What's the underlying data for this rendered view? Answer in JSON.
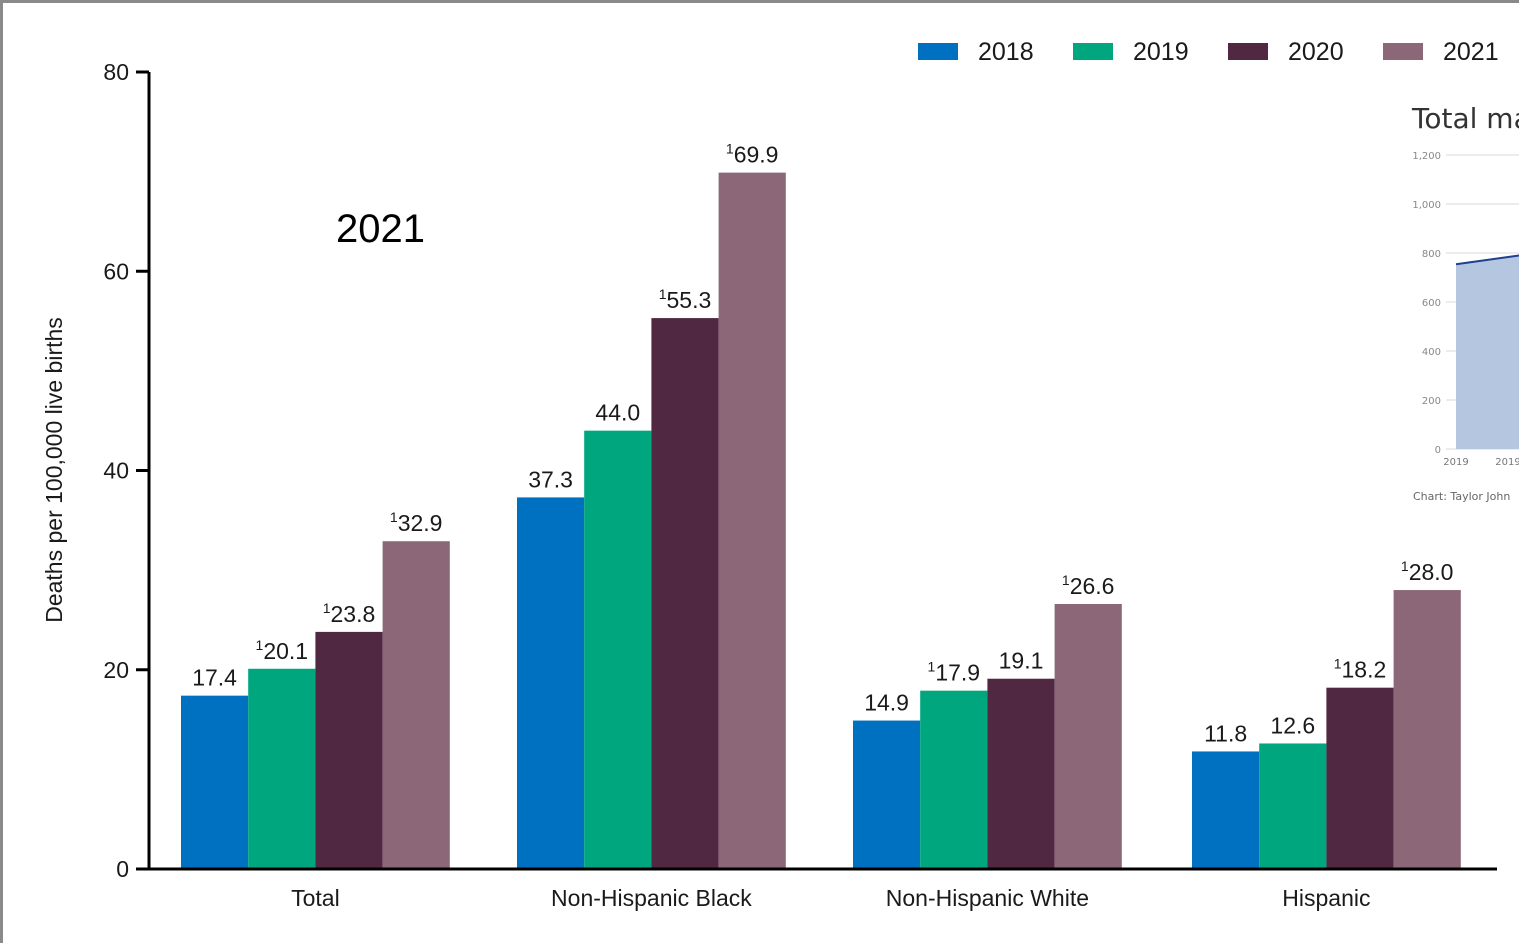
{
  "chart_data": [
    {
      "type": "bar",
      "ylabel": "Deaths per 100,000 live births",
      "ylim": [
        0,
        80
      ],
      "yticks": [
        0,
        20,
        40,
        60,
        80
      ],
      "categories": [
        "Total",
        "Non-Hispanic Black",
        "Non-Hispanic White",
        "Hispanic"
      ],
      "series": [
        {
          "name": "2018",
          "color": "#0070c0",
          "values": [
            17.4,
            37.3,
            14.9,
            11.8
          ],
          "labels": [
            "17.4",
            "37.3",
            "14.9",
            "11.8"
          ],
          "superscripts": [
            "",
            "",
            "",
            ""
          ]
        },
        {
          "name": "2019",
          "color": "#00a67e",
          "values": [
            20.1,
            44.0,
            17.9,
            12.6
          ],
          "labels": [
            "20.1",
            "44.0",
            "17.9",
            "12.6"
          ],
          "superscripts": [
            "1",
            "",
            "1",
            ""
          ]
        },
        {
          "name": "2020",
          "color": "#512842",
          "values": [
            23.8,
            55.3,
            19.1,
            18.2
          ],
          "labels": [
            "23.8",
            "55.3",
            "19.1",
            "18.2"
          ],
          "superscripts": [
            "1",
            "1",
            "",
            "1"
          ]
        },
        {
          "name": "2021",
          "color": "#8b6778",
          "values": [
            32.9,
            69.9,
            26.6,
            28.0
          ],
          "labels": [
            "32.9",
            "69.9",
            "26.6",
            "28.0"
          ],
          "superscripts": [
            "1",
            "1",
            "1",
            "1"
          ]
        }
      ],
      "legend_position": "top-right",
      "annotation": "2021"
    },
    {
      "type": "area",
      "title": "Total ma",
      "ylim": [
        0,
        1200
      ],
      "yticks": [
        "0",
        "200",
        "400",
        "600",
        "800",
        "1,000",
        "1,200"
      ],
      "xticks": [
        "2019",
        "2019"
      ],
      "points": [
        [
          0,
          754
        ],
        [
          1,
          790
        ]
      ],
      "line_color": "#1f3f8f",
      "fill_color": "#b4c6e0",
      "credit": "Chart: Taylor John"
    }
  ]
}
